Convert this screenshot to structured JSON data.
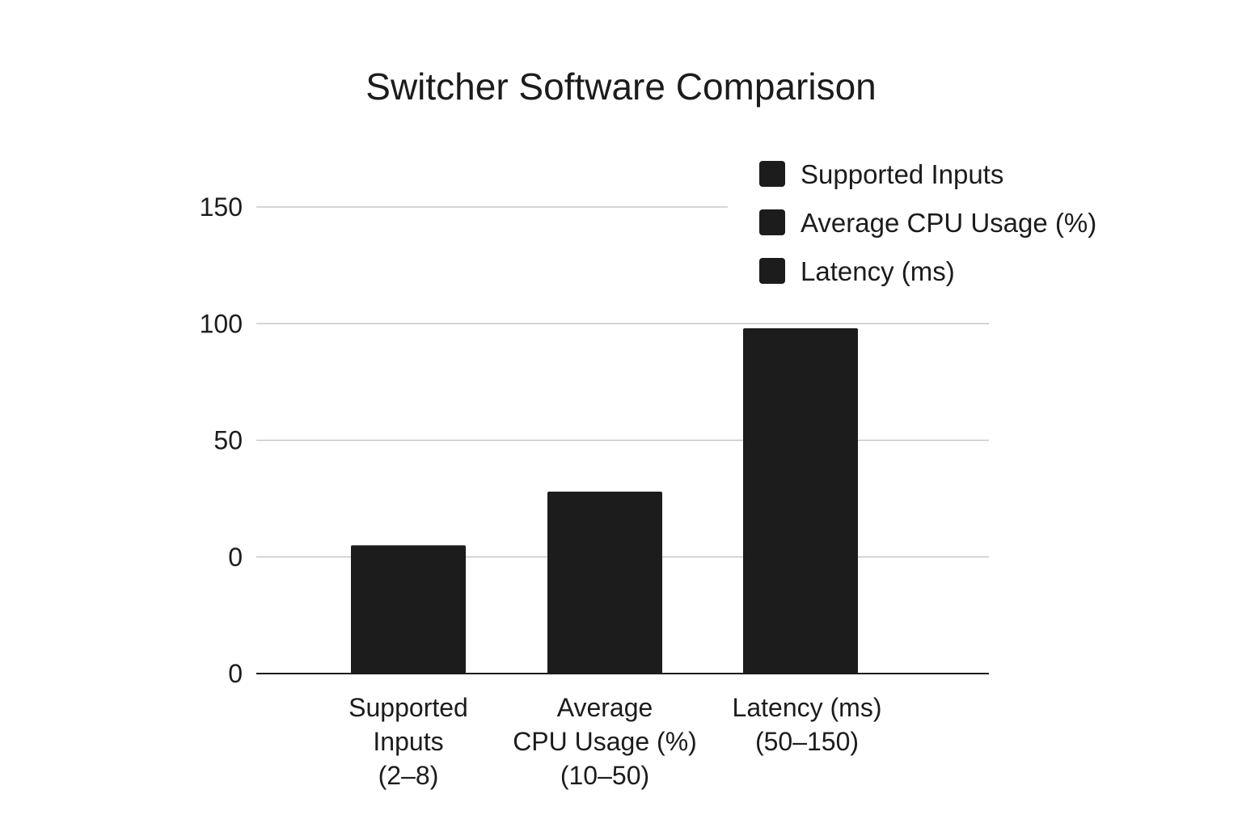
{
  "chart_data": {
    "type": "bar",
    "title": "Switcher Software Comparison",
    "categories": [
      [
        "Supported",
        "Inputs",
        "(2–8)"
      ],
      [
        "Average",
        "CPU Usage (%)",
        "(10–50)"
      ],
      [
        "Latency (ms)",
        "(50–150)"
      ]
    ],
    "values": [
      5,
      28,
      98
    ],
    "y_tick_labels": [
      "0",
      "0",
      "50",
      "100",
      "150"
    ],
    "ylim": [
      -50,
      150
    ],
    "grid": true,
    "legend": {
      "placement": "top-right",
      "entries": [
        "Supported Inputs",
        "Average CPU Usage (%)",
        "Latency (ms)"
      ]
    },
    "bar_color": "#1c1c1c",
    "grid_color": "#c8c8c8"
  }
}
